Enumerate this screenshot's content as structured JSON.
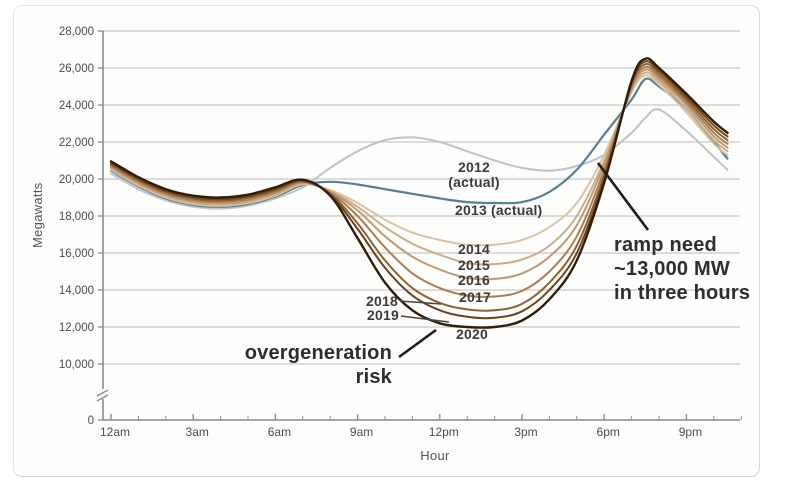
{
  "figure": {
    "title": "",
    "ylabel": "Megawatts",
    "xlabel": "Hour"
  },
  "annotations": {
    "overgeneration_line1": "overgeneration",
    "overgeneration_line2": "risk",
    "ramp_line1": "ramp need",
    "ramp_line2": "~13,000 MW",
    "ramp_line3": "in three hours"
  },
  "chart_data": {
    "type": "line",
    "title": "",
    "xlabel": "Hour",
    "ylabel": "Megawatts",
    "axis_note": "y-axis has a break between 0 and 10,000",
    "grid": true,
    "legend_position": "inline-labels",
    "y_tick_values": [
      28000,
      26000,
      24000,
      22000,
      20000,
      18000,
      16000,
      14000,
      12000,
      10000,
      0
    ],
    "y_tick_labels": [
      "28,000",
      "26,000",
      "24,000",
      "22,000",
      "20,000",
      "18,000",
      "16,000",
      "14,000",
      "12,000",
      "10,000",
      "0"
    ],
    "x_tick_hours": [
      0,
      3,
      6,
      9,
      12,
      15,
      18,
      21
    ],
    "x_tick_labels": [
      "12am",
      "3am",
      "6am",
      "9am",
      "12pm",
      "3pm",
      "6pm",
      "9pm"
    ],
    "x_hours": [
      0,
      1,
      2,
      3,
      4,
      5,
      6,
      7,
      8,
      9,
      10,
      11,
      12,
      13,
      14,
      15,
      16,
      17,
      18,
      19,
      19.5,
      20,
      21,
      22,
      22.5
    ],
    "series": [
      {
        "name": "2012 (actual)",
        "label": "2012",
        "label2": "(actual)",
        "color": "#bcc4c6",
        "width": 2,
        "values": [
          20300,
          19450,
          18850,
          18500,
          18400,
          18550,
          18950,
          19550,
          20600,
          21500,
          22100,
          22250,
          22000,
          21500,
          21000,
          20600,
          20450,
          20700,
          21300,
          22500,
          23300,
          23750,
          22600,
          21200,
          20500
        ]
      },
      {
        "name": "2013 (actual)",
        "label": "2013 (actual)",
        "color": "#577e92",
        "width": 2.2,
        "values": [
          20450,
          19600,
          18950,
          18600,
          18500,
          18650,
          19050,
          19680,
          19850,
          19700,
          19450,
          19200,
          18950,
          18750,
          18700,
          18750,
          19300,
          20500,
          22400,
          24300,
          25400,
          25000,
          23800,
          22000,
          21100
        ]
      },
      {
        "name": "2014",
        "label": "2014",
        "color": "#dbc3a6",
        "width": 2,
        "values": [
          20500,
          19650,
          19000,
          18650,
          18550,
          18700,
          19100,
          19720,
          19400,
          18700,
          17800,
          17100,
          16700,
          16450,
          16450,
          16700,
          17400,
          18700,
          21300,
          24700,
          25600,
          25100,
          23600,
          21900,
          21300
        ]
      },
      {
        "name": "2015",
        "label": "2015",
        "color": "#cead8a",
        "width": 2,
        "values": [
          20570,
          19720,
          19070,
          18720,
          18620,
          18770,
          19170,
          19760,
          19350,
          18500,
          17400,
          16500,
          15900,
          15450,
          15400,
          15650,
          16400,
          18000,
          21000,
          24800,
          25750,
          25250,
          23800,
          22100,
          21500
        ]
      },
      {
        "name": "2016",
        "label": "2016",
        "color": "#c09972",
        "width": 2,
        "values": [
          20640,
          19790,
          19140,
          18790,
          18690,
          18840,
          19240,
          19800,
          19300,
          18300,
          16900,
          15800,
          15100,
          14650,
          14600,
          14900,
          15800,
          17500,
          20800,
          24900,
          25900,
          25400,
          24000,
          22300,
          21700
        ]
      },
      {
        "name": "2017",
        "label": "2017",
        "color": "#a97e52",
        "width": 2,
        "values": [
          20710,
          19860,
          19210,
          18860,
          18760,
          18910,
          19310,
          19840,
          19250,
          18000,
          16300,
          14900,
          14100,
          13700,
          13650,
          13950,
          15000,
          16900,
          20500,
          25000,
          26050,
          25550,
          24150,
          22500,
          21900
        ]
      },
      {
        "name": "2018",
        "label": "2018",
        "color": "#8d6133",
        "width": 2,
        "values": [
          20790,
          19940,
          19290,
          18940,
          18840,
          18990,
          19390,
          19880,
          19200,
          17600,
          15600,
          14100,
          13300,
          12950,
          12900,
          13250,
          14400,
          16400,
          20200,
          25100,
          26200,
          25700,
          24300,
          22700,
          22100
        ]
      },
      {
        "name": "2019",
        "label": "2019",
        "color": "#6b431c",
        "width": 2,
        "values": [
          20860,
          20010,
          19360,
          19010,
          18910,
          19060,
          19460,
          19920,
          19150,
          17300,
          15200,
          13700,
          12900,
          12550,
          12500,
          12850,
          14000,
          16000,
          20000,
          25200,
          26350,
          25850,
          24450,
          22900,
          22300
        ]
      },
      {
        "name": "2020",
        "label": "2020",
        "color": "#2f1d0b",
        "width": 2.4,
        "values": [
          20950,
          20100,
          19450,
          19100,
          19000,
          19150,
          19550,
          19960,
          19100,
          16800,
          14400,
          12900,
          12200,
          12000,
          12000,
          12350,
          13500,
          15600,
          19800,
          25300,
          26500,
          26000,
          24600,
          23100,
          22500
        ]
      }
    ]
  }
}
